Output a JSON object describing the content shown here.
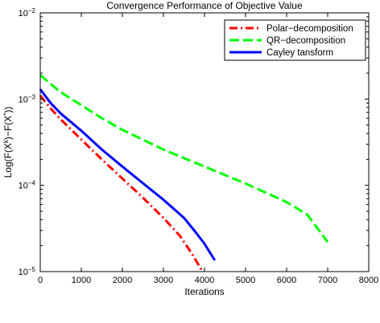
{
  "chart_data": {
    "type": "line",
    "title": "Convergence Performance of Objective Value",
    "xlabel": "Iterations",
    "ylabel": "Log(F(X^k)−F(X^*))",
    "ylabel_parts": {
      "before": "Log(F(X",
      "sup_k": "k",
      "middle": ")−F(X",
      "sup_star": "*",
      "after": "))"
    },
    "xlim": [
      0,
      8000
    ],
    "ylim": [
      1e-05,
      0.01
    ],
    "yscale": "log",
    "x_ticks": [
      0,
      1000,
      2000,
      3000,
      4000,
      5000,
      6000,
      7000,
      8000
    ],
    "y_ticks": [
      {
        "value": 1e-05,
        "base": "10",
        "exp": "−5"
      },
      {
        "value": 0.0001,
        "base": "10",
        "exp": "−4"
      },
      {
        "value": 0.001,
        "base": "10",
        "exp": "−3"
      },
      {
        "value": 0.01,
        "base": "10",
        "exp": "−2"
      }
    ],
    "grid": false,
    "legend_position": "top-right",
    "series": [
      {
        "name": "Polar−decomposition",
        "color": "#ff0000",
        "dash": "dashdot",
        "x": [
          0,
          250,
          500,
          1000,
          1500,
          2000,
          2500,
          3000,
          3400,
          3700,
          3950
        ],
        "y": [
          0.0011,
          0.00078,
          0.00058,
          0.00034,
          0.0002,
          0.00012,
          7.2e-05,
          4.2e-05,
          2.6e-05,
          1.6e-05,
          1e-05
        ]
      },
      {
        "name": "QR−decomposition",
        "color": "#00ff00",
        "dash": "dashed",
        "x": [
          0,
          250,
          500,
          1000,
          1500,
          2000,
          3000,
          4000,
          5000,
          6000,
          6500,
          7000
        ],
        "y": [
          0.0019,
          0.0015,
          0.0012,
          0.00085,
          0.0006,
          0.00044,
          0.00026,
          0.000165,
          0.000105,
          6.4e-05,
          4.6e-05,
          2.2e-05
        ]
      },
      {
        "name": "Cayley tansform",
        "color": "#0000ff",
        "dash": "solid",
        "x": [
          0,
          250,
          500,
          1000,
          1500,
          2000,
          2500,
          3000,
          3500,
          3800,
          4000,
          4250
        ],
        "y": [
          0.0013,
          0.0009,
          0.00068,
          0.00043,
          0.00026,
          0.000165,
          0.000106,
          6.8e-05,
          4.2e-05,
          2.8e-05,
          2.1e-05,
          1.35e-05
        ]
      }
    ]
  }
}
